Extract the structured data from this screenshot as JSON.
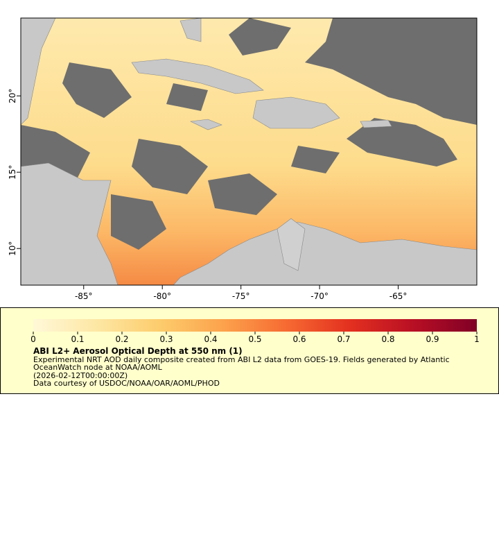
{
  "map": {
    "xlim": [
      -89,
      -60
    ],
    "ylim": [
      7.6,
      25.1
    ],
    "xticks": [
      {
        "value": -85,
        "label": "-85°"
      },
      {
        "value": -80,
        "label": "-80°"
      },
      {
        "value": -75,
        "label": "-75°"
      },
      {
        "value": -70,
        "label": "-70°"
      },
      {
        "value": -65,
        "label": "-65°"
      }
    ],
    "yticks": [
      {
        "value": 10,
        "label": "10°"
      },
      {
        "value": 15,
        "label": "15°"
      },
      {
        "value": 20,
        "label": "20°"
      }
    ]
  },
  "colorbar": {
    "lim": [
      0,
      1
    ],
    "ticks": [
      0,
      0.1,
      0.2,
      0.3,
      0.4,
      0.5,
      0.6,
      0.7,
      0.8,
      0.9,
      1
    ],
    "colors": [
      "#fff8d8",
      "#fde7a4",
      "#fdcc6c",
      "#fca24c",
      "#f66a32",
      "#e3301f",
      "#b80f24",
      "#800026"
    ]
  },
  "legend": {
    "title": "ABI L2+ Aerosol Optical Depth at 550 nm (1)",
    "lines": [
      "Experimental NRT AOD daily composite created from ABI L2 data from GOES-19. Fields generated by Atlantic",
      "OceanWatch node at NOAA/AOML",
      "(2026-02-12T00:00:00Z)",
      "Data courtesy of USDOC/NOAA/OAR/AOML/PHOD"
    ]
  }
}
